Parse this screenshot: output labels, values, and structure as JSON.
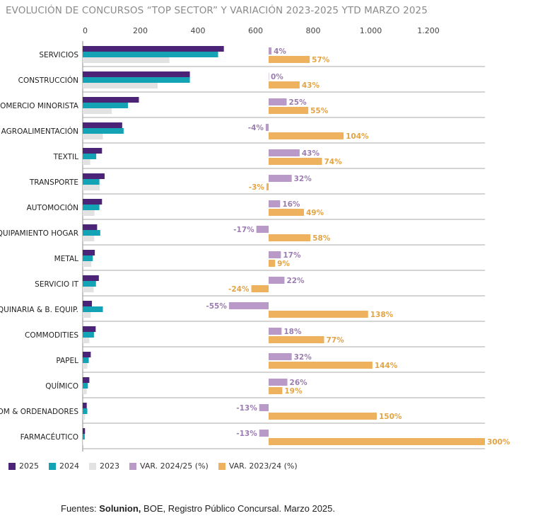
{
  "title": "EVOLUCIÓN DE CONCURSOS “TOP SECTOR” Y VARIACIÓN 2023-2025 YTD MARZO 2025",
  "source": {
    "prefix": "Fuentes: ",
    "bold": "Solunion,",
    "rest": " BOE, Registro Público Concursal. Marzo 2025."
  },
  "legend": [
    {
      "key": "y2025",
      "label": "2025",
      "color": "#4b2478"
    },
    {
      "key": "y2024",
      "label": "2024",
      "color": "#13a3b4"
    },
    {
      "key": "y2023",
      "label": "2023",
      "color": "#e2e2e2"
    },
    {
      "key": "var2425",
      "label": "VAR. 2024/25 (%)",
      "color": "#b999c8"
    },
    {
      "key": "var2324",
      "label": "VAR. 2023/24 (%)",
      "color": "#eeb15d"
    }
  ],
  "chart_data": {
    "type": "bar",
    "orientation": "horizontal",
    "xticks": [
      "0",
      "200",
      "400",
      "600",
      "800",
      "1.000",
      "1.200"
    ],
    "xtick_values": [
      0,
      200,
      400,
      600,
      800,
      1000,
      1200
    ],
    "categories": [
      "SERVICIOS",
      "CONSTRUCCIÓN",
      "COMERCIO MINORISTA",
      "AGROALIMENTACIÓN",
      "TEXTIL",
      "TRANSPORTE",
      "AUTOMOCIÓN",
      "EQUIPAMIENTO HOGAR",
      "METAL",
      "SERVICIO IT",
      "MAQUINARIA & B. EQUIP.",
      "COMMODITIES",
      "PAPEL",
      "QUÍMICO",
      "TELECOM & ORDENADORES",
      "FARMACÉUTICO"
    ],
    "series": [
      {
        "name": "2025",
        "values": [
          490,
          372,
          195,
          137,
          67,
          76,
          67,
          50,
          42,
          56,
          32,
          45,
          28,
          23,
          14,
          8
        ]
      },
      {
        "name": "2024",
        "values": [
          470,
          372,
          157,
          142,
          47,
          58,
          58,
          61,
          35,
          46,
          70,
          39,
          21,
          18,
          16,
          7
        ]
      },
      {
        "name": "2023",
        "values": [
          301,
          260,
          101,
          70,
          26,
          59,
          41,
          40,
          30,
          38,
          28,
          23,
          16,
          14,
          8,
          2
        ]
      },
      {
        "name": "VAR. 2024/25 (%)",
        "values": [
          4,
          0,
          25,
          -4,
          43,
          32,
          16,
          -17,
          17,
          22,
          -55,
          18,
          32,
          26,
          -13,
          -13
        ],
        "labels": [
          "4%",
          "0%",
          "25%",
          "-4%",
          "43%",
          "32%",
          "16%",
          "-17%",
          "17%",
          "22%",
          "-55%",
          "18%",
          "32%",
          "26%",
          "-13%",
          "-13%"
        ]
      },
      {
        "name": "VAR. 2023/24 (%)",
        "values": [
          57,
          43,
          55,
          104,
          74,
          -3,
          49,
          58,
          9,
          -24,
          138,
          77,
          144,
          19,
          150,
          300
        ],
        "labels": [
          "57%",
          "43%",
          "55%",
          "104%",
          "74%",
          "-3%",
          "49%",
          "58%",
          "9%",
          "-24%",
          "138%",
          "77%",
          "144%",
          "19%",
          "150%",
          "300%"
        ]
      }
    ]
  }
}
